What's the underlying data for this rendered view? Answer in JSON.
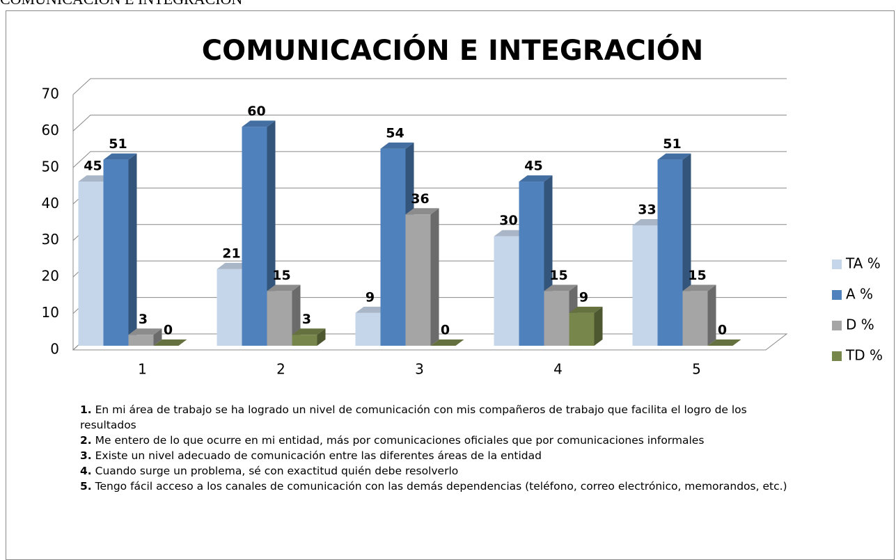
{
  "page_heading": "COMUNICACIÓN E INTEGRACIÓN",
  "chart_data": {
    "type": "bar3d",
    "title": "COMUNICACIÓN E INTEGRACIÓN",
    "categories": [
      "1",
      "2",
      "3",
      "4",
      "5"
    ],
    "series": [
      {
        "name": "TA %",
        "color": "#c6d6ea",
        "values": [
          45,
          21,
          9,
          30,
          33
        ]
      },
      {
        "name": "A %",
        "color": "#4f81bd",
        "values": [
          51,
          60,
          54,
          45,
          51
        ]
      },
      {
        "name": "D %",
        "color": "#a5a5a5",
        "values": [
          3,
          15,
          36,
          15,
          15
        ]
      },
      {
        "name": "TD %",
        "color": "#77864a",
        "values": [
          0,
          3,
          0,
          9,
          0
        ]
      }
    ],
    "ylim": [
      0,
      70
    ],
    "yticks": [
      0,
      10,
      20,
      30,
      40,
      50,
      60,
      70
    ],
    "grid": true,
    "legend": "right",
    "notes": [
      {
        "number": "1.",
        "text": "En mi área de trabajo se ha logrado un nivel de comunicación con mis compañeros de trabajo que facilita el logro de los resultados"
      },
      {
        "number": "2.",
        "text": "Me entero de lo que ocurre en mi entidad, más por comunicaciones oficiales que por comunicaciones informales"
      },
      {
        "number": "3.",
        "text": "Existe un nivel adecuado de comunicación entre las diferentes áreas de la entidad"
      },
      {
        "number": "4.",
        "text": "Cuando surge un problema, sé con exactitud quién debe resolverlo"
      },
      {
        "number": "5.",
        "text": "Tengo fácil acceso a los canales de comunicación con las demás dependencias (teléfono, correo electrónico, memorandos, etc.)"
      }
    ]
  }
}
